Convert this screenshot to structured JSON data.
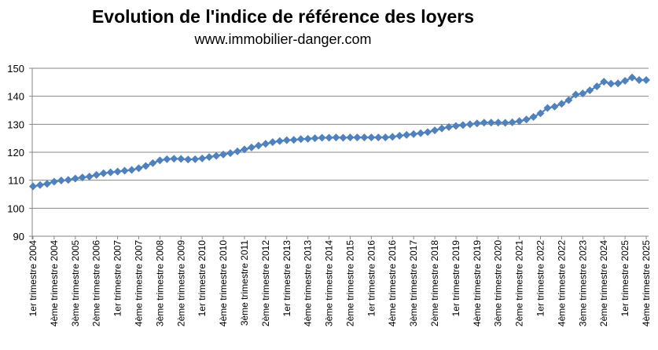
{
  "chart_data": {
    "type": "line",
    "title": "Evolution de l'indice de référence des loyers",
    "subtitle": "www.immobilier-danger.com",
    "xlabel": "",
    "ylabel": "",
    "ylim": [
      90,
      150
    ],
    "yticks": [
      90,
      100,
      110,
      120,
      130,
      140,
      150
    ],
    "grid": true,
    "legend": "none",
    "marker": "diamond",
    "color": "#4F81BD",
    "tick_labels": [
      "1er trimestre 2004",
      "4ème trimestre 2004",
      "3ème trimestre 2005",
      "2ème trimestre 2006",
      "1er trimestre 2007",
      "4ème trimestre 2007",
      "3ème trimestre 2008",
      "2ème trimestre 2009",
      "1er trimestre 2010",
      "4ème trimestre 2010",
      "3ème trimestre 2011",
      "2ème trimestre 2012",
      "1er trimestre 2013",
      "4ème trimestre 2013",
      "3ème trimestre 2014",
      "2ème trimestre 2015",
      "1er trimestre 2016",
      "4ème trimestre 2016",
      "3ème trimestre 2017",
      "2ème trimestre 2018",
      "1er trimestre 2019",
      "4ème trimestre 2019",
      "3ème trimestre 2020",
      "2ème trimestre 2021",
      "1er trimestre 2022",
      "4ème trimestre 2022",
      "3ème trimestre 2023",
      "2ème trimestre 2024",
      "1er trimestre 2025",
      "4ème trimestre 2025"
    ],
    "values": [
      107.8,
      108.3,
      108.7,
      109.5,
      109.9,
      110.1,
      110.6,
      111.0,
      111.3,
      111.9,
      112.5,
      112.8,
      113.1,
      113.4,
      113.7,
      114.3,
      115.1,
      116.1,
      117.1,
      117.5,
      117.7,
      117.6,
      117.4,
      117.5,
      117.8,
      118.3,
      118.7,
      119.2,
      119.7,
      120.3,
      121.0,
      121.7,
      122.4,
      123.0,
      123.6,
      124.0,
      124.3,
      124.4,
      124.7,
      124.8,
      125.0,
      125.2,
      125.2,
      125.3,
      125.2,
      125.3,
      125.3,
      125.3,
      125.3,
      125.3,
      125.3,
      125.5,
      125.9,
      126.2,
      126.5,
      126.8,
      127.2,
      127.8,
      128.5,
      129.0,
      129.4,
      129.7,
      130.0,
      130.3,
      130.6,
      130.6,
      130.6,
      130.5,
      130.7,
      131.1,
      131.7,
      132.6,
      133.9,
      135.8,
      136.3,
      137.3,
      138.6,
      140.6,
      141.0,
      142.1,
      143.5,
      145.2,
      144.5,
      144.6,
      145.5,
      146.7,
      145.8,
      145.8
    ]
  }
}
